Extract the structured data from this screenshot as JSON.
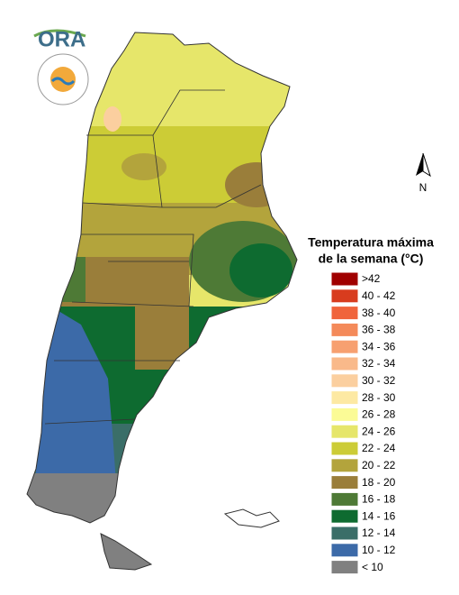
{
  "logo": {
    "text": "ORA"
  },
  "north_arrow": {
    "label": "N"
  },
  "legend": {
    "title": [
      "Temperatura máxima",
      "de la semana (°C)"
    ],
    "items": [
      {
        "label": ">42",
        "color": "#a00000"
      },
      {
        "label": "40 - 42",
        "color": "#d83c1e"
      },
      {
        "label": "38 - 40",
        "color": "#f0643c"
      },
      {
        "label": "36 - 38",
        "color": "#f48a5a"
      },
      {
        "label": "34 - 36",
        "color": "#f7a070"
      },
      {
        "label": "32 - 34",
        "color": "#f9b98a"
      },
      {
        "label": "30 - 32",
        "color": "#fbcf9f"
      },
      {
        "label": "28 - 30",
        "color": "#fde9a3"
      },
      {
        "label": "26 - 28",
        "color": "#fbfb96"
      },
      {
        "label": "24 - 26",
        "color": "#e6e66a"
      },
      {
        "label": "22 - 24",
        "color": "#cccc36"
      },
      {
        "label": "20 - 22",
        "color": "#b3a43c"
      },
      {
        "label": "18 - 20",
        "color": "#9a7e3a"
      },
      {
        "label": "16 - 18",
        "color": "#4e7a36"
      },
      {
        "label": "14 - 16",
        "color": "#0e6b30"
      },
      {
        "label": "12 - 14",
        "color": "#3a6e68"
      },
      {
        "label": "10 - 12",
        "color": "#3c6aa8"
      },
      {
        "label": "< 10",
        "color": "#808080"
      }
    ]
  }
}
